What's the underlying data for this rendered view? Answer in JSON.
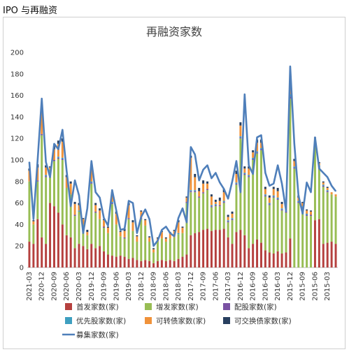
{
  "page": {
    "title": "IPO 与再融资"
  },
  "chart_data": {
    "type": "bar",
    "title": "再融资家数",
    "xlabel": "",
    "ylabel": "",
    "ylim": [
      0,
      200
    ],
    "yticks": [
      0,
      20,
      40,
      60,
      80,
      100,
      120,
      140,
      160,
      180,
      200
    ],
    "grid": false,
    "legend_position": "bottom",
    "x_order": "reverse-chronological",
    "colors": {
      "ipo": "#b5403e",
      "seo": "#98bd54",
      "rights": "#7a52a3",
      "preferred": "#3e9fc0",
      "convertible": "#f0923a",
      "exchangeable": "#283f5f",
      "total": "#4f7fba"
    },
    "legend": [
      {
        "key": "ipo",
        "label": "首发家数(家)",
        "kind": "bar"
      },
      {
        "key": "seo",
        "label": "增发家数(家)",
        "kind": "bar"
      },
      {
        "key": "rights",
        "label": "配股家数(家)",
        "kind": "bar"
      },
      {
        "key": "preferred",
        "label": "优先股家数(家)",
        "kind": "bar"
      },
      {
        "key": "convertible",
        "label": "可转债家数(家)",
        "kind": "bar"
      },
      {
        "key": "exchangeable",
        "label": "可交换债家数(家)",
        "kind": "bar"
      },
      {
        "key": "total",
        "label": "募集家数(家)",
        "kind": "line"
      }
    ],
    "x_tick_labels": [
      "2021-03",
      "2020-12",
      "2020-09",
      "2020-06",
      "2020-03",
      "2019-12",
      "2019-09",
      "2019-06",
      "2019-03",
      "2018-12",
      "2018-09",
      "2018-06",
      "2018-03",
      "2017-12",
      "2017-09",
      "2017-06",
      "2017-03",
      "2016-12",
      "2016-09",
      "2016-06",
      "2016-03",
      "2015-12",
      "2015-09",
      "2015-06",
      "2015-03"
    ],
    "categories": [
      "2021-03",
      "2021-02",
      "2021-01",
      "2020-12",
      "2020-11",
      "2020-10",
      "2020-09",
      "2020-08",
      "2020-07",
      "2020-06",
      "2020-05",
      "2020-04",
      "2020-03",
      "2020-02",
      "2020-01",
      "2019-12",
      "2019-11",
      "2019-10",
      "2019-09",
      "2019-08",
      "2019-07",
      "2019-06",
      "2019-05",
      "2019-04",
      "2019-03",
      "2019-02",
      "2019-01",
      "2018-12",
      "2018-11",
      "2018-10",
      "2018-09",
      "2018-08",
      "2018-07",
      "2018-06",
      "2018-05",
      "2018-04",
      "2018-03",
      "2018-02",
      "2018-01",
      "2017-12",
      "2017-11",
      "2017-10",
      "2017-09",
      "2017-08",
      "2017-07",
      "2017-06",
      "2017-05",
      "2017-04",
      "2017-03",
      "2017-02",
      "2017-01",
      "2016-12",
      "2016-11",
      "2016-10",
      "2016-09",
      "2016-08",
      "2016-07",
      "2016-06",
      "2016-05",
      "2016-04",
      "2016-03",
      "2016-02",
      "2016-01",
      "2015-12",
      "2015-11",
      "2015-10",
      "2015-09",
      "2015-08",
      "2015-07",
      "2015-06",
      "2015-05",
      "2015-04",
      "2015-03",
      "2015-02",
      "2015-01"
    ],
    "series": [
      {
        "key": "ipo",
        "name": "首发家数(家)",
        "type": "bar",
        "values": [
          24,
          22,
          45,
          28,
          22,
          60,
          57,
          51,
          40,
          30,
          28,
          18,
          22,
          20,
          17,
          22,
          18,
          20,
          15,
          12,
          11,
          10,
          11,
          10,
          8,
          9,
          7,
          6,
          7,
          6,
          4,
          6,
          7,
          6,
          7,
          6,
          8,
          10,
          12,
          30,
          32,
          33,
          35,
          36,
          34,
          35,
          35,
          36,
          28,
          22,
          33,
          35,
          30,
          18,
          22,
          26,
          23,
          16,
          14,
          13,
          15,
          13,
          14,
          27,
          0,
          0,
          0,
          0,
          0,
          44,
          45,
          22,
          23,
          24,
          22
        ]
      },
      {
        "key": "seo",
        "name": "增发家数(家)",
        "type": "bar",
        "values": [
          56,
          18,
          35,
          95,
          62,
          30,
          42,
          50,
          60,
          44,
          40,
          30,
          30,
          20,
          13,
          56,
          33,
          25,
          22,
          20,
          48,
          30,
          18,
          17,
          37,
          25,
          17,
          39,
          32,
          18,
          10,
          18,
          20,
          18,
          20,
          22,
          23,
          22,
          48,
          40,
          38,
          32,
          34,
          36,
          22,
          22,
          22,
          24,
          14,
          22,
          44,
          85,
          56,
          66,
          78,
          80,
          86,
          50,
          44,
          52,
          48,
          40,
          37,
          130,
          92,
          60,
          55,
          48,
          48,
          72,
          48,
          53,
          47,
          44,
          44
        ]
      },
      {
        "key": "rights",
        "name": "配股家数(家)",
        "type": "bar",
        "values": [
          0,
          0,
          1,
          1,
          1,
          0,
          1,
          1,
          1,
          0,
          0,
          1,
          0,
          0,
          0,
          1,
          1,
          0,
          1,
          0,
          1,
          0,
          0,
          1,
          1,
          0,
          0,
          1,
          0,
          0,
          0,
          0,
          0,
          0,
          0,
          0,
          0,
          0,
          1,
          1,
          1,
          1,
          1,
          1,
          1,
          1,
          1,
          1,
          1,
          1,
          1,
          1,
          1,
          1,
          1,
          1,
          1,
          1,
          1,
          1,
          1,
          1,
          1,
          2,
          1,
          1,
          1,
          1,
          1,
          1,
          1,
          1,
          1,
          0,
          0
        ]
      },
      {
        "key": "preferred",
        "name": "优先股家数(家)",
        "type": "bar",
        "values": [
          0,
          0,
          0,
          0,
          1,
          1,
          0,
          1,
          1,
          0,
          0,
          0,
          1,
          0,
          0,
          1,
          0,
          0,
          0,
          0,
          1,
          0,
          0,
          0,
          0,
          0,
          0,
          0,
          0,
          0,
          0,
          0,
          0,
          0,
          0,
          0,
          1,
          0,
          0,
          1,
          1,
          0,
          0,
          0,
          1,
          1,
          0,
          1,
          1,
          1,
          1,
          1,
          1,
          1,
          1,
          1,
          1,
          1,
          1,
          1,
          1,
          1,
          1,
          2,
          1,
          1,
          1,
          1,
          0,
          1,
          1,
          1,
          1,
          0,
          0
        ]
      },
      {
        "key": "convertible",
        "name": "可转债家数(家)",
        "type": "bar",
        "values": [
          10,
          3,
          12,
          24,
          7,
          2,
          10,
          12,
          15,
          10,
          10,
          10,
          5,
          5,
          3,
          14,
          6,
          8,
          6,
          5,
          7,
          10,
          4,
          6,
          12,
          8,
          5,
          6,
          5,
          4,
          3,
          3,
          6,
          3,
          5,
          6,
          10,
          5,
          4,
          30,
          12,
          5,
          8,
          5,
          8,
          2,
          4,
          8,
          3,
          4,
          8,
          10,
          4,
          6,
          5,
          8,
          5,
          5,
          5,
          6,
          6,
          4,
          4,
          10,
          5,
          3,
          3,
          3,
          3,
          2,
          2,
          2,
          2,
          2,
          2
        ]
      },
      {
        "key": "exchangeable",
        "name": "可交换债家数(家)",
        "type": "bar",
        "values": [
          2,
          1,
          3,
          3,
          2,
          1,
          3,
          3,
          3,
          2,
          2,
          2,
          2,
          1,
          2,
          2,
          2,
          2,
          1,
          1,
          2,
          2,
          1,
          2,
          2,
          2,
          1,
          1,
          1,
          1,
          1,
          1,
          1,
          1,
          1,
          1,
          2,
          1,
          1,
          2,
          3,
          3,
          3,
          2,
          2,
          2,
          3,
          3,
          2,
          2,
          3,
          3,
          2,
          2,
          2,
          3,
          3,
          2,
          2,
          2,
          3,
          2,
          2,
          3,
          2,
          2,
          1,
          1,
          1,
          1,
          1,
          1,
          1,
          0,
          0
        ]
      },
      {
        "key": "total",
        "name": "募集家数(家)",
        "type": "line",
        "values": [
          98,
          45,
          100,
          157,
          98,
          84,
          115,
          110,
          128,
          90,
          57,
          81,
          67,
          32,
          55,
          99,
          70,
          65,
          46,
          39,
          72,
          53,
          35,
          36,
          62,
          60,
          32,
          47,
          54,
          45,
          20,
          25,
          35,
          38,
          32,
          29,
          46,
          55,
          42,
          112,
          105,
          81,
          91,
          95,
          83,
          88,
          79,
          73,
          64,
          80,
          99,
          70,
          161,
          95,
          87,
          121,
          123,
          88,
          76,
          78,
          95,
          78,
          53,
          187,
          115,
          67,
          50,
          79,
          70,
          121,
          92,
          88,
          84,
          76,
          71
        ]
      }
    ]
  }
}
